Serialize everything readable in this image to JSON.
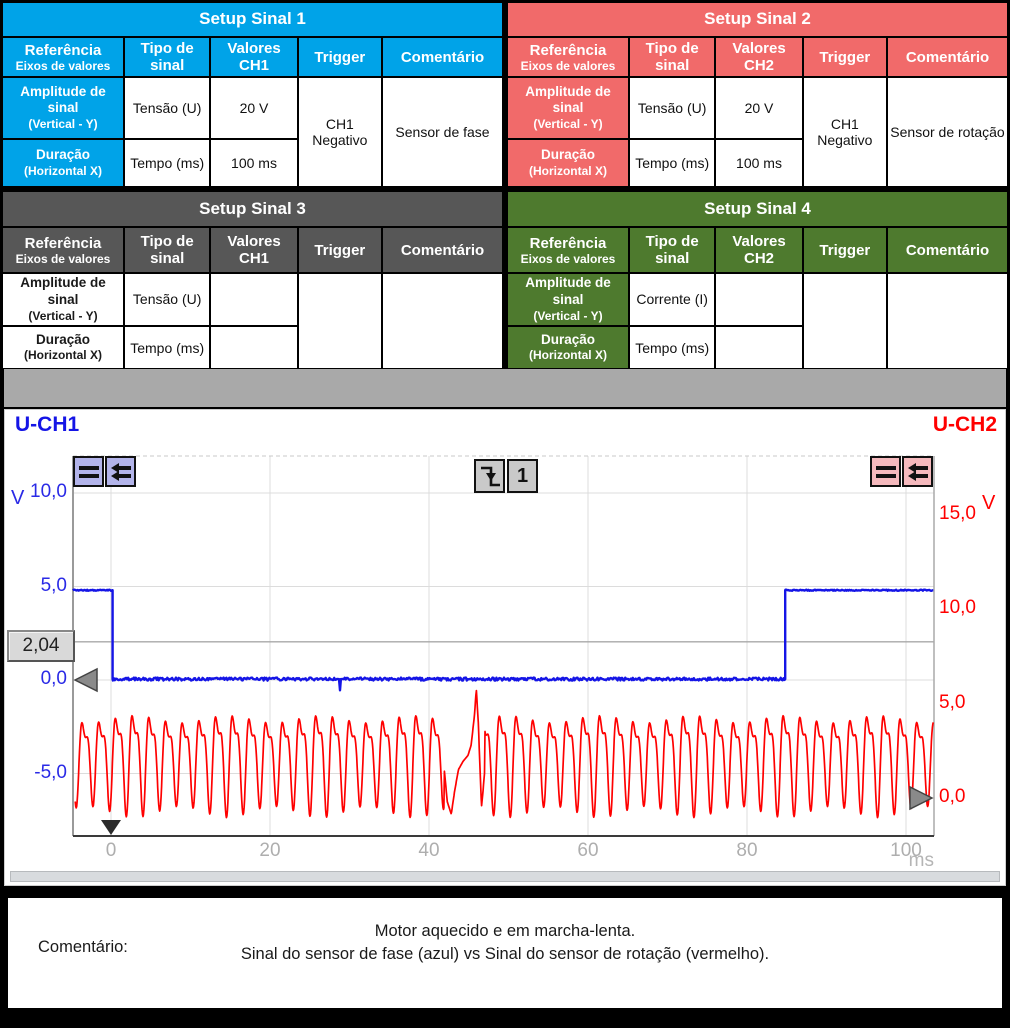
{
  "tables": [
    {
      "title": "Setup Sinal 1",
      "accent": "#00A3E8",
      "row_labels_plain": false,
      "ref_header": {
        "line1": "Referência",
        "line2": "Eixos de valores"
      },
      "columns": [
        "Tipo de sinal",
        "Valores CH1",
        "Trigger",
        "Comentário"
      ],
      "rows": [
        {
          "label": "Amplitude de sinal",
          "label_sub": "(Vertical - Y)",
          "tipo": "Tensão (U)",
          "valor": "20 V"
        },
        {
          "label": "Duração",
          "label_sub": "(Horizontal X)",
          "tipo": "Tempo (ms)",
          "valor": "100 ms"
        }
      ],
      "trigger": "CH1 Negativo",
      "comentario": "Sensor de fase"
    },
    {
      "title": "Setup Sinal 2",
      "accent": "#F16A6A",
      "row_labels_plain": false,
      "ref_header": {
        "line1": "Referência",
        "line2": "Eixos de valores"
      },
      "columns": [
        "Tipo de sinal",
        "Valores CH2",
        "Trigger",
        "Comentário"
      ],
      "rows": [
        {
          "label": "Amplitude de sinal",
          "label_sub": "(Vertical - Y)",
          "tipo": "Tensão (U)",
          "valor": "20 V"
        },
        {
          "label": "Duração",
          "label_sub": "(Horizontal X)",
          "tipo": "Tempo (ms)",
          "valor": "100 ms"
        }
      ],
      "trigger": "CH1 Negativo",
      "comentario": "Sensor de rotação"
    },
    {
      "title": "Setup Sinal 3",
      "accent": "#575757",
      "row_labels_plain": true,
      "ref_header": {
        "line1": "Referência",
        "line2": "Eixos de valores"
      },
      "columns": [
        "Tipo de sinal",
        "Valores CH1",
        "Trigger",
        "Comentário"
      ],
      "rows": [
        {
          "label": "Amplitude de sinal",
          "label_sub": "(Vertical - Y)",
          "tipo": "Tensão (U)",
          "valor": ""
        },
        {
          "label": "Duração",
          "label_sub": "(Horizontal X)",
          "tipo": "Tempo (ms)",
          "valor": ""
        }
      ],
      "trigger": "",
      "comentario": ""
    },
    {
      "title": "Setup Sinal 4",
      "accent": "#4E7A2E",
      "row_labels_plain": false,
      "ref_header": {
        "line1": "Referência",
        "line2": "Eixos de valores"
      },
      "columns": [
        "Tipo de sinal",
        "Valores CH2",
        "Trigger",
        "Comentário"
      ],
      "rows": [
        {
          "label": "Amplitude de sinal",
          "label_sub": "(Vertical - Y)",
          "tipo": "Corrente (I)",
          "valor": ""
        },
        {
          "label": "Duração",
          "label_sub": "(Horizontal X)",
          "tipo": "Tempo (ms)",
          "valor": ""
        }
      ],
      "trigger": "",
      "comentario": ""
    }
  ],
  "scope": {
    "ch1_label": "U-CH1",
    "ch2_label": "U-CH2",
    "ch1_color": "#1515e6",
    "ch2_color": "#ff0000",
    "left_axis": {
      "unit": "V",
      "ticks": [
        "10,0",
        "5,0",
        "0,0",
        "-5,0"
      ],
      "tick_values": [
        10,
        5,
        0,
        -5
      ]
    },
    "right_axis": {
      "unit": "V",
      "ticks": [
        "15,0",
        "10,0",
        "5,0",
        "0,0"
      ],
      "tick_values": [
        15,
        10,
        5,
        0
      ]
    },
    "x_axis": {
      "unit": "ms",
      "ticks": [
        "0",
        "20",
        "40",
        "60",
        "80",
        "100"
      ],
      "tick_values": [
        0,
        20,
        40,
        60,
        80,
        100
      ]
    },
    "cursor": {
      "label": "2,04",
      "value": 2.04
    },
    "trigger_badge": {
      "source": "1"
    }
  },
  "chart_data": {
    "type": "line",
    "x_unit": "ms",
    "x_range_ms": [
      -4.8,
      103.5
    ],
    "x_ticks": [
      0,
      20,
      40,
      60,
      80,
      100
    ],
    "series": [
      {
        "name": "U-CH1",
        "color": "#1515e6",
        "axis": "left",
        "axis_ticks_v": [
          10,
          5,
          0,
          -5
        ],
        "waveform": "square",
        "high_v": 4.8,
        "low_v": 0.05,
        "fall_ms": 0.2,
        "rise_ms": 84.8,
        "glitch": {
          "t_ms": 28.8,
          "up_v": 0.62,
          "down_v": -0.55
        },
        "trigger_level_v": 2.04,
        "trigger_slope": "negative",
        "trigger_time_ms": 0
      },
      {
        "name": "U-CH2",
        "color": "#ff0000",
        "axis": "right",
        "axis_ticks_v": [
          15,
          10,
          5,
          0
        ],
        "waveform": "oscillation",
        "center_v": 2.25,
        "amp_v": 2.7,
        "period_ms": 2.1,
        "harmonic2": 0.34,
        "gap_start_ms": 41.9,
        "gap_end_ms": 47.0,
        "gap_points": [
          [
            41.9,
            1.6
          ],
          [
            42.3,
            -0.2
          ],
          [
            42.8,
            -0.85
          ],
          [
            43.2,
            0.3
          ],
          [
            43.7,
            1.5
          ],
          [
            44.3,
            1.95
          ],
          [
            44.9,
            2.25
          ],
          [
            45.3,
            2.8
          ],
          [
            45.7,
            4.3
          ],
          [
            45.95,
            5.75
          ],
          [
            46.2,
            4.0
          ],
          [
            46.45,
            1.2
          ],
          [
            46.6,
            -0.5
          ],
          [
            46.8,
            0.4
          ],
          [
            47.0,
            1.4
          ]
        ]
      }
    ]
  },
  "comment": {
    "label": "Comentário:",
    "line1": "Motor aquecido e em marcha-lenta.",
    "line2": "Sinal do sensor de fase (azul) vs Sinal do sensor de rotação (vermelho)."
  }
}
